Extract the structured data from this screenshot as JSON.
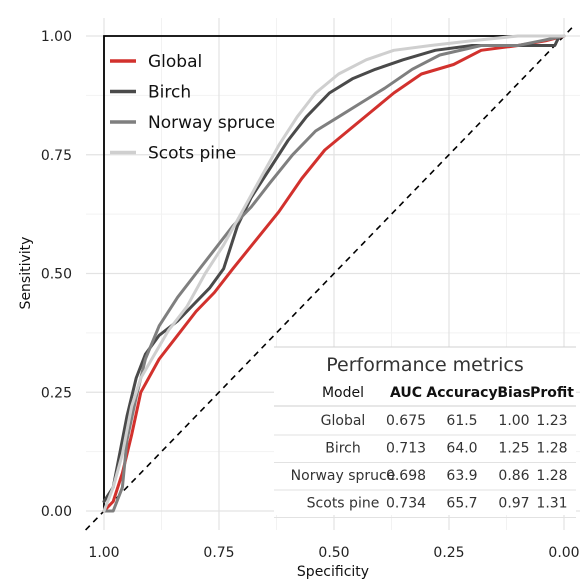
{
  "chart_data": {
    "type": "line",
    "title": "",
    "xlabel": "Specificity",
    "ylabel": "Sensitivity",
    "xlim": [
      1.0,
      0.0
    ],
    "ylim": [
      0.0,
      1.0
    ],
    "x_reversed": true,
    "xticks": [
      "1.00",
      "0.75",
      "0.50",
      "0.25",
      "0.00"
    ],
    "yticks": [
      "0.00",
      "0.25",
      "0.50",
      "0.75",
      "1.00"
    ],
    "grid": true,
    "legend_position": "top-left",
    "reference_lines": [
      "diagonal chance line",
      "perfect classifier line"
    ],
    "series": [
      {
        "name": "Global",
        "color": "#d2312d",
        "points": [
          [
            1.0,
            0.0
          ],
          [
            0.98,
            0.02
          ],
          [
            0.96,
            0.08
          ],
          [
            0.94,
            0.16
          ],
          [
            0.92,
            0.25
          ],
          [
            0.88,
            0.32
          ],
          [
            0.84,
            0.37
          ],
          [
            0.8,
            0.42
          ],
          [
            0.76,
            0.46
          ],
          [
            0.72,
            0.51
          ],
          [
            0.67,
            0.57
          ],
          [
            0.62,
            0.63
          ],
          [
            0.57,
            0.7
          ],
          [
            0.52,
            0.76
          ],
          [
            0.47,
            0.8
          ],
          [
            0.42,
            0.84
          ],
          [
            0.37,
            0.88
          ],
          [
            0.31,
            0.92
          ],
          [
            0.24,
            0.94
          ],
          [
            0.18,
            0.97
          ],
          [
            0.1,
            0.98
          ],
          [
            0.04,
            0.99
          ],
          [
            0.0,
            1.0
          ]
        ]
      },
      {
        "name": "Birch",
        "color": "#4a4a4a",
        "points": [
          [
            1.0,
            0.02
          ],
          [
            0.98,
            0.05
          ],
          [
            0.97,
            0.1
          ],
          [
            0.95,
            0.2
          ],
          [
            0.93,
            0.28
          ],
          [
            0.91,
            0.33
          ],
          [
            0.88,
            0.37
          ],
          [
            0.84,
            0.4
          ],
          [
            0.8,
            0.44
          ],
          [
            0.77,
            0.47
          ],
          [
            0.74,
            0.51
          ],
          [
            0.71,
            0.6
          ],
          [
            0.68,
            0.66
          ],
          [
            0.64,
            0.72
          ],
          [
            0.6,
            0.78
          ],
          [
            0.56,
            0.83
          ],
          [
            0.51,
            0.88
          ],
          [
            0.46,
            0.91
          ],
          [
            0.41,
            0.93
          ],
          [
            0.35,
            0.95
          ],
          [
            0.28,
            0.97
          ],
          [
            0.2,
            0.98
          ],
          [
            0.1,
            0.98
          ],
          [
            0.02,
            0.98
          ],
          [
            0.01,
            1.0
          ],
          [
            0.0,
            1.0
          ]
        ]
      },
      {
        "name": "Norway spruce",
        "color": "#7f7f7f",
        "points": [
          [
            1.0,
            0.0
          ],
          [
            0.98,
            0.0
          ],
          [
            0.96,
            0.05
          ],
          [
            0.95,
            0.15
          ],
          [
            0.93,
            0.24
          ],
          [
            0.91,
            0.32
          ],
          [
            0.88,
            0.39
          ],
          [
            0.84,
            0.45
          ],
          [
            0.8,
            0.5
          ],
          [
            0.76,
            0.55
          ],
          [
            0.72,
            0.6
          ],
          [
            0.68,
            0.64
          ],
          [
            0.64,
            0.69
          ],
          [
            0.59,
            0.75
          ],
          [
            0.54,
            0.8
          ],
          [
            0.49,
            0.83
          ],
          [
            0.44,
            0.86
          ],
          [
            0.39,
            0.89
          ],
          [
            0.33,
            0.93
          ],
          [
            0.27,
            0.96
          ],
          [
            0.18,
            0.98
          ],
          [
            0.1,
            0.98
          ],
          [
            0.05,
            0.99
          ],
          [
            0.0,
            1.0
          ]
        ]
      },
      {
        "name": "Scots pine",
        "color": "#cfcfcf",
        "points": [
          [
            1.0,
            0.0
          ],
          [
            0.98,
            0.05
          ],
          [
            0.96,
            0.12
          ],
          [
            0.94,
            0.22
          ],
          [
            0.92,
            0.28
          ],
          [
            0.89,
            0.33
          ],
          [
            0.86,
            0.38
          ],
          [
            0.82,
            0.43
          ],
          [
            0.78,
            0.5
          ],
          [
            0.74,
            0.56
          ],
          [
            0.7,
            0.63
          ],
          [
            0.66,
            0.7
          ],
          [
            0.62,
            0.77
          ],
          [
            0.58,
            0.83
          ],
          [
            0.54,
            0.88
          ],
          [
            0.49,
            0.92
          ],
          [
            0.43,
            0.95
          ],
          [
            0.37,
            0.97
          ],
          [
            0.29,
            0.98
          ],
          [
            0.2,
            0.99
          ],
          [
            0.1,
            1.0
          ],
          [
            0.0,
            1.0
          ]
        ]
      }
    ]
  },
  "table": {
    "title": "Performance metrics",
    "headers": [
      "Model",
      "AUC",
      "Accuracy",
      "Bias",
      "Profit"
    ],
    "rows": [
      [
        "Global",
        "0.675",
        "61.5",
        "1.00",
        "1.23"
      ],
      [
        "Birch",
        "0.713",
        "64.0",
        "1.25",
        "1.28"
      ],
      [
        "Norway spruce",
        "0.698",
        "63.9",
        "0.86",
        "1.28"
      ],
      [
        "Scots pine",
        "0.734",
        "65.7",
        "0.97",
        "1.31"
      ]
    ]
  }
}
